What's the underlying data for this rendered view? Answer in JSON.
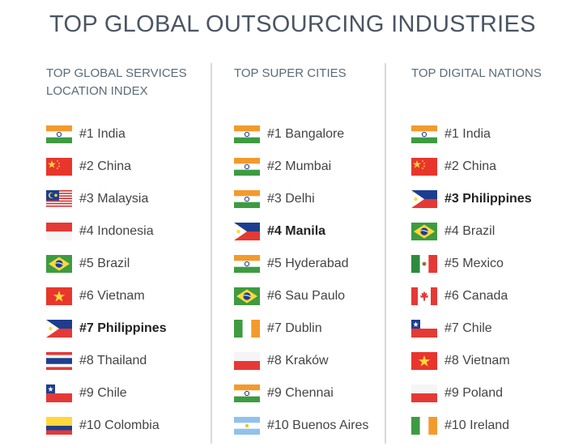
{
  "title": "TOP GLOBAL OUTSOURCING INDUSTRIES",
  "columns": [
    {
      "header": [
        "TOP GLOBAL SERVICES",
        "LOCATION INDEX"
      ],
      "items": [
        {
          "label": "#1 India",
          "flag": "india-flag-icon",
          "bold": false
        },
        {
          "label": "#2 China",
          "flag": "china-flag-icon",
          "bold": false
        },
        {
          "label": "#3 Malaysia",
          "flag": "malaysia-flag-icon",
          "bold": false
        },
        {
          "label": "#4 Indonesia",
          "flag": "indonesia-flag-icon",
          "bold": false
        },
        {
          "label": "#5 Brazil",
          "flag": "brazil-flag-icon",
          "bold": false
        },
        {
          "label": "#6 Vietnam",
          "flag": "vietnam-flag-icon",
          "bold": false
        },
        {
          "label": "#7 Philippines",
          "flag": "philippines-flag-icon",
          "bold": true
        },
        {
          "label": "#8 Thailand",
          "flag": "thailand-flag-icon",
          "bold": false
        },
        {
          "label": "#9 Chile",
          "flag": "chile-flag-icon",
          "bold": false
        },
        {
          "label": "#10 Colombia",
          "flag": "colombia-flag-icon",
          "bold": false
        }
      ]
    },
    {
      "header": [
        "TOP SUPER CITIES"
      ],
      "items": [
        {
          "label": "#1 Bangalore",
          "flag": "india-flag-icon",
          "bold": false
        },
        {
          "label": "#2 Mumbai",
          "flag": "india-flag-icon",
          "bold": false
        },
        {
          "label": "#3 Delhi",
          "flag": "india-flag-icon",
          "bold": false
        },
        {
          "label": "#4 Manila",
          "flag": "philippines-flag-icon",
          "bold": true
        },
        {
          "label": "#5 Hyderabad",
          "flag": "india-flag-icon",
          "bold": false
        },
        {
          "label": "#6 Sau Paulo",
          "flag": "brazil-flag-icon",
          "bold": false
        },
        {
          "label": "#7 Dublin",
          "flag": "ireland-flag-icon",
          "bold": false
        },
        {
          "label": "#8 Kraków",
          "flag": "poland-flag-icon",
          "bold": false
        },
        {
          "label": "#9 Chennai",
          "flag": "india-flag-icon",
          "bold": false
        },
        {
          "label": "#10 Buenos Aires",
          "flag": "argentina-flag-icon",
          "bold": false
        }
      ]
    },
    {
      "header": [
        "TOP DIGITAL NATIONS"
      ],
      "items": [
        {
          "label": "#1 India",
          "flag": "india-flag-icon",
          "bold": false
        },
        {
          "label": "#2 China",
          "flag": "china-flag-icon",
          "bold": false
        },
        {
          "label": "#3 Philippines",
          "flag": "philippines-flag-icon",
          "bold": true
        },
        {
          "label": "#4 Brazil",
          "flag": "brazil-flag-icon",
          "bold": false
        },
        {
          "label": "#5 Mexico",
          "flag": "mexico-flag-icon",
          "bold": false
        },
        {
          "label": "#6 Canada",
          "flag": "canada-flag-icon",
          "bold": false
        },
        {
          "label": "#7 Chile",
          "flag": "chile-flag-icon",
          "bold": false
        },
        {
          "label": "#8 Vietnam",
          "flag": "vietnam-flag-icon",
          "bold": false
        },
        {
          "label": "#9 Poland",
          "flag": "poland-flag-icon",
          "bold": false
        },
        {
          "label": "#10 Ireland",
          "flag": "ireland-flag-icon",
          "bold": false
        }
      ]
    }
  ],
  "colors": {
    "title": "#4b5563",
    "header": "#5a6b7a",
    "text": "#444444",
    "divider": "#d9d9d9"
  }
}
